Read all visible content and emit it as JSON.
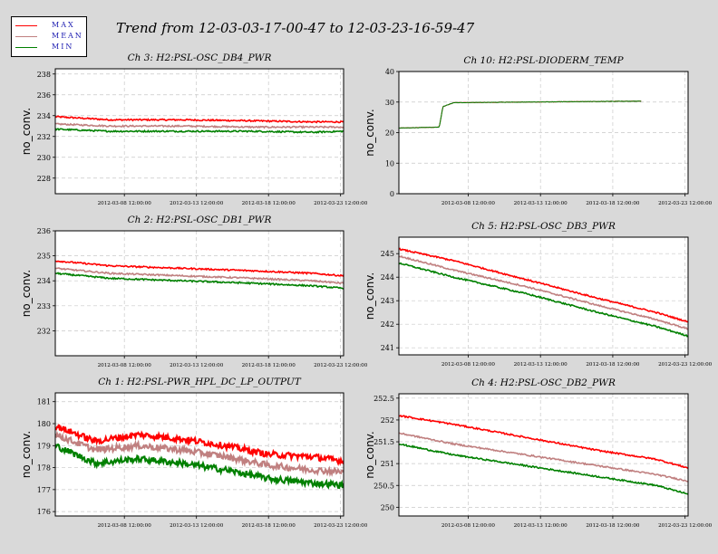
{
  "title": "Trend from 12-03-03-17-00-47 to 12-03-23-16-59-47",
  "legend": [
    {
      "name": "MAX",
      "color": "#ff0000"
    },
    {
      "name": "MEAN",
      "color": "#c08080"
    },
    {
      "name": "MIN",
      "color": "#008000"
    }
  ],
  "colors": {
    "max": "#ff0000",
    "mean": "#c08080",
    "min": "#008000",
    "grid": "#c8c8c8"
  },
  "chart_data": [
    {
      "type": "line",
      "title": "Ch 3: H2:PSL-OSC_DB4_PWR",
      "ylabel": "no_conv.",
      "xlabel": "",
      "ylim": [
        226.5,
        238.5
      ],
      "yticks": [
        "228",
        "230",
        "232",
        "234",
        "236",
        "238"
      ],
      "xticks": [
        "2012-03-08 12:00:00",
        "2012-03-13 12:00:00",
        "2012-03-18 12:00:00",
        "2012-03-23 12:00:00"
      ],
      "grid": true,
      "x": [
        "2012-03-03 17:00",
        "2012-03-07 12:00",
        "2012-03-12 12:00",
        "2012-03-17 12:00",
        "2012-03-21 12:00",
        "2012-03-23 17:00"
      ],
      "series": [
        {
          "name": "MAX",
          "values": [
            233.9,
            233.6,
            233.6,
            233.5,
            233.4,
            233.4
          ]
        },
        {
          "name": "MEAN",
          "values": [
            233.2,
            233.0,
            233.0,
            232.9,
            232.9,
            232.9
          ]
        },
        {
          "name": "MIN",
          "values": [
            232.7,
            232.5,
            232.5,
            232.5,
            232.4,
            232.5
          ]
        }
      ]
    },
    {
      "type": "line",
      "title": "Ch 10: H2:PSL-DIODERM_TEMP",
      "ylabel": "no_conv.",
      "xlabel": "",
      "ylim": [
        0,
        40
      ],
      "yticks": [
        "0",
        "10",
        "20",
        "30",
        "40"
      ],
      "xticks": [
        "2012-03-08 12:00:00",
        "2012-03-13 12:00:00",
        "2012-03-18 12:00:00",
        "2012-03-23 12:00:00"
      ],
      "grid": true,
      "x": [
        "2012-03-03 17:00",
        "2012-03-06 12:00",
        "2012-03-06 18:00",
        "2012-03-07 12:00",
        "2012-03-12 12:00",
        "2012-03-17 12:00",
        "2012-03-20 12:00"
      ],
      "series": [
        {
          "name": "MAX",
          "values": [
            21.5,
            21.8,
            28.5,
            29.8,
            30.0,
            30.2,
            30.3
          ]
        },
        {
          "name": "MEAN",
          "values": [
            21.5,
            21.8,
            28.5,
            29.8,
            30.0,
            30.2,
            30.3
          ]
        },
        {
          "name": "MIN",
          "values": [
            21.5,
            21.8,
            28.5,
            29.8,
            30.0,
            30.2,
            30.3
          ]
        }
      ]
    },
    {
      "type": "line",
      "title": "Ch 2: H2:PSL-OSC_DB1_PWR",
      "ylabel": "no_conv.",
      "xlabel": "",
      "ylim": [
        231,
        236
      ],
      "yticks": [
        "232",
        "233",
        "234",
        "235",
        "236"
      ],
      "xticks": [
        "2012-03-08 12:00:00",
        "2012-03-13 12:00:00",
        "2012-03-18 12:00:00",
        "2012-03-23 12:00:00"
      ],
      "grid": true,
      "x": [
        "2012-03-03 17:00",
        "2012-03-07 12:00",
        "2012-03-12 12:00",
        "2012-03-17 12:00",
        "2012-03-21 12:00",
        "2012-03-23 17:00"
      ],
      "series": [
        {
          "name": "MAX",
          "values": [
            234.8,
            234.6,
            234.5,
            234.4,
            234.3,
            234.2
          ]
        },
        {
          "name": "MEAN",
          "values": [
            234.5,
            234.3,
            234.2,
            234.1,
            234.0,
            233.9
          ]
        },
        {
          "name": "MIN",
          "values": [
            234.3,
            234.1,
            234.0,
            233.9,
            233.8,
            233.7
          ]
        }
      ]
    },
    {
      "type": "line",
      "title": "Ch 5: H2:PSL-OSC_DB3_PWR",
      "ylabel": "no_conv.",
      "xlabel": "",
      "ylim": [
        240.7,
        245.7
      ],
      "yticks": [
        "241",
        "242",
        "243",
        "244",
        "245"
      ],
      "xticks": [
        "2012-03-08 12:00:00",
        "2012-03-13 12:00:00",
        "2012-03-18 12:00:00",
        "2012-03-23 12:00:00"
      ],
      "grid": true,
      "x": [
        "2012-03-03 17:00",
        "2012-03-07 12:00",
        "2012-03-12 12:00",
        "2012-03-17 12:00",
        "2012-03-21 12:00",
        "2012-03-23 17:00"
      ],
      "series": [
        {
          "name": "MAX",
          "values": [
            245.2,
            244.7,
            243.9,
            243.1,
            242.5,
            242.1
          ]
        },
        {
          "name": "MEAN",
          "values": [
            244.9,
            244.3,
            243.6,
            242.8,
            242.2,
            241.8
          ]
        },
        {
          "name": "MIN",
          "values": [
            244.6,
            244.0,
            243.3,
            242.5,
            241.9,
            241.5
          ]
        }
      ]
    },
    {
      "type": "line",
      "title": "Ch 1: H2:PSL-PWR_HPL_DC_LP_OUTPUT",
      "ylabel": "no_conv.",
      "xlabel": "",
      "ylim": [
        175.8,
        181.4
      ],
      "yticks": [
        "176",
        "177",
        "178",
        "179",
        "180",
        "181"
      ],
      "xticks": [
        "2012-03-08 12:00:00",
        "2012-03-13 12:00:00",
        "2012-03-18 12:00:00",
        "2012-03-23 12:00:00"
      ],
      "grid": true,
      "x": [
        "2012-03-03 17:00",
        "2012-03-06 12:00",
        "2012-03-09 12:00",
        "2012-03-12 12:00",
        "2012-03-15 12:00",
        "2012-03-18 12:00",
        "2012-03-21 12:00",
        "2012-03-23 17:00"
      ],
      "series": [
        {
          "name": "MAX",
          "values": [
            179.9,
            179.2,
            179.5,
            179.3,
            179.0,
            178.6,
            178.5,
            178.3
          ]
        },
        {
          "name": "MEAN",
          "values": [
            179.5,
            178.8,
            179.0,
            178.8,
            178.5,
            178.1,
            177.9,
            177.8
          ]
        },
        {
          "name": "MIN",
          "values": [
            179.0,
            178.2,
            178.4,
            178.2,
            177.9,
            177.5,
            177.3,
            177.2
          ]
        }
      ]
    },
    {
      "type": "line",
      "title": "Ch 4: H2:PSL-OSC_DB2_PWR",
      "ylabel": "no_conv.",
      "xlabel": "",
      "ylim": [
        249.8,
        252.6
      ],
      "yticks": [
        "250",
        "250.5",
        "251",
        "251.5",
        "252",
        "252.5"
      ],
      "xticks": [
        "2012-03-08 12:00:00",
        "2012-03-13 12:00:00",
        "2012-03-18 12:00:00",
        "2012-03-23 12:00:00"
      ],
      "grid": true,
      "x": [
        "2012-03-03 17:00",
        "2012-03-07 12:00",
        "2012-03-12 12:00",
        "2012-03-17 12:00",
        "2012-03-21 12:00",
        "2012-03-23 17:00"
      ],
      "series": [
        {
          "name": "MAX",
          "values": [
            252.1,
            251.9,
            251.6,
            251.3,
            251.1,
            250.9
          ]
        },
        {
          "name": "MEAN",
          "values": [
            251.7,
            251.45,
            251.2,
            250.95,
            250.75,
            250.6
          ]
        },
        {
          "name": "MIN",
          "values": [
            251.45,
            251.2,
            250.95,
            250.7,
            250.5,
            250.3
          ]
        }
      ]
    }
  ]
}
